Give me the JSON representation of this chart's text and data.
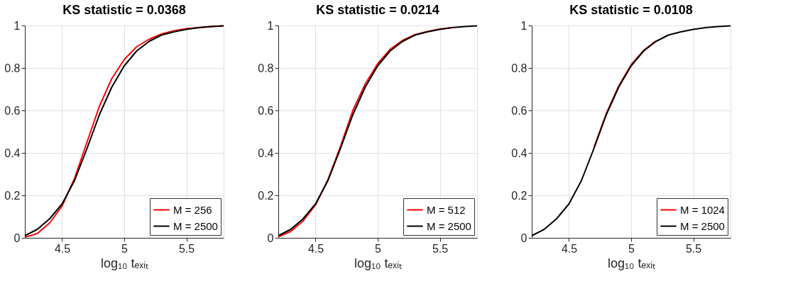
{
  "chart_data": [
    {
      "type": "line",
      "title": "KS statistic = 0.0368",
      "xlabel": "log₁₀ tₑₓᵢₜ",
      "xlim": [
        4.2,
        5.8
      ],
      "xticks": [
        4.5,
        5,
        5.5
      ],
      "ylim": [
        0,
        1
      ],
      "yticks": [
        0,
        0.2,
        0.4,
        0.6,
        0.8,
        1
      ],
      "grid": true,
      "legend": "bottom right",
      "x": [
        4.2,
        4.3,
        4.4,
        4.5,
        4.6,
        4.7,
        4.8,
        4.9,
        5.0,
        5.1,
        5.2,
        5.3,
        5.4,
        5.5,
        5.6,
        5.7,
        5.8
      ],
      "series": [
        {
          "name": "M = 256",
          "color": "#ff0000",
          "values": [
            0.003,
            0.02,
            0.07,
            0.15,
            0.28,
            0.45,
            0.62,
            0.75,
            0.84,
            0.9,
            0.935,
            0.96,
            0.975,
            0.985,
            0.99,
            0.995,
            0.998
          ]
        },
        {
          "name": "M = 2500",
          "color": "#000000",
          "values": [
            0.01,
            0.04,
            0.09,
            0.16,
            0.27,
            0.42,
            0.58,
            0.71,
            0.81,
            0.88,
            0.925,
            0.955,
            0.97,
            0.982,
            0.99,
            0.995,
            0.998
          ]
        }
      ]
    },
    {
      "type": "line",
      "title": "KS statistic = 0.0214",
      "xlabel": "log₁₀ tₑₓᵢₜ",
      "xlim": [
        4.2,
        5.8
      ],
      "xticks": [
        4.5,
        5,
        5.5
      ],
      "ylim": [
        0,
        1
      ],
      "yticks": [
        0,
        0.2,
        0.4,
        0.6,
        0.8,
        1
      ],
      "grid": true,
      "legend": "bottom right",
      "x": [
        4.2,
        4.3,
        4.4,
        4.5,
        4.6,
        4.7,
        4.8,
        4.9,
        5.0,
        5.1,
        5.2,
        5.3,
        5.4,
        5.5,
        5.6,
        5.7,
        5.8
      ],
      "series": [
        {
          "name": "M = 512",
          "color": "#ff0000",
          "values": [
            0.005,
            0.03,
            0.08,
            0.155,
            0.275,
            0.43,
            0.6,
            0.725,
            0.82,
            0.888,
            0.93,
            0.957,
            0.972,
            0.983,
            0.99,
            null,
            null
          ]
        },
        {
          "name": "M = 2500",
          "color": "#000000",
          "values": [
            0.01,
            0.04,
            0.09,
            0.16,
            0.27,
            0.42,
            0.58,
            0.71,
            0.81,
            0.88,
            0.925,
            0.955,
            0.97,
            0.982,
            0.99,
            0.995,
            0.998
          ]
        }
      ]
    },
    {
      "type": "line",
      "title": "KS statistic = 0.0108",
      "xlabel": "log₁₀ tₑₓᵢₜ",
      "xlim": [
        4.2,
        5.8
      ],
      "xticks": [
        4.5,
        5,
        5.5
      ],
      "ylim": [
        0,
        1
      ],
      "yticks": [
        0,
        0.2,
        0.4,
        0.6,
        0.8,
        1
      ],
      "grid": true,
      "legend": "bottom right",
      "x": [
        4.2,
        4.3,
        4.4,
        4.5,
        4.6,
        4.7,
        4.8,
        4.9,
        5.0,
        5.1,
        5.2,
        5.3,
        5.4,
        5.5,
        5.6,
        5.7,
        5.8
      ],
      "series": [
        {
          "name": "M = 1024",
          "color": "#ff0000",
          "values": [
            null,
            null,
            null,
            null,
            null,
            0.425,
            0.585,
            0.715,
            0.815,
            0.882,
            0.927,
            null,
            null,
            null,
            null,
            null,
            null
          ]
        },
        {
          "name": "M = 2500",
          "color": "#000000",
          "values": [
            0.01,
            0.04,
            0.09,
            0.16,
            0.27,
            0.42,
            0.58,
            0.71,
            0.81,
            0.88,
            0.925,
            0.955,
            0.97,
            0.982,
            0.99,
            0.995,
            0.998
          ]
        }
      ]
    }
  ]
}
